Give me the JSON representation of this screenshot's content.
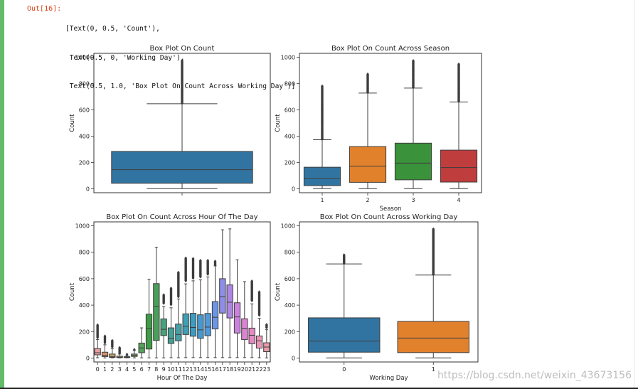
{
  "notebook": {
    "prompt": "Out[16]:",
    "output_lines": [
      "[Text(0, 0.5, 'Count'),",
      " Text(0.5, 0, 'Working Day'),",
      " Text(0.5, 1.0, 'Box Plot On Count Across Working Day')]"
    ],
    "watermark": "https://blog.csdn.net/weixin_43673156"
  },
  "chart_data": [
    {
      "type": "box",
      "title": "Box Plot On Count",
      "xlabel": "",
      "ylabel": "Count",
      "ylim": [
        -30,
        1030
      ],
      "yticks": [
        0,
        200,
        400,
        600,
        800,
        1000
      ],
      "categories": [
        ""
      ],
      "boxes": [
        {
          "min": 1,
          "q1": 42,
          "median": 145,
          "q3": 284,
          "max": 647,
          "outliers_from": 647,
          "outliers_to": 977,
          "color": "#3274a1"
        }
      ]
    },
    {
      "type": "box",
      "title": "Box Plot On Count Across Season",
      "xlabel": "Season",
      "ylabel": "Count",
      "ylim": [
        -30,
        1030
      ],
      "yticks": [
        0,
        200,
        400,
        600,
        800,
        1000
      ],
      "categories": [
        "1",
        "2",
        "3",
        "4"
      ],
      "boxes": [
        {
          "min": 1,
          "q1": 24,
          "median": 78,
          "q3": 164,
          "max": 373,
          "outliers_from": 373,
          "outliers_to": 781,
          "color": "#3274a1"
        },
        {
          "min": 1,
          "q1": 49,
          "median": 172,
          "q3": 321,
          "max": 728,
          "outliers_from": 728,
          "outliers_to": 873,
          "color": "#e1812c"
        },
        {
          "min": 1,
          "q1": 68,
          "median": 195,
          "q3": 347,
          "max": 766,
          "outliers_from": 766,
          "outliers_to": 977,
          "color": "#3a923a"
        },
        {
          "min": 1,
          "q1": 51,
          "median": 161,
          "q3": 294,
          "max": 660,
          "outliers_from": 660,
          "outliers_to": 948,
          "color": "#c03d3e"
        }
      ]
    },
    {
      "type": "box",
      "title": "Box Plot On Count Across Hour Of The Day",
      "xlabel": "Hour Of The Day",
      "ylabel": "Count",
      "ylim": [
        -30,
        1030
      ],
      "yticks": [
        0,
        200,
        400,
        600,
        800,
        1000
      ],
      "categories": [
        "0",
        "1",
        "2",
        "3",
        "4",
        "5",
        "6",
        "7",
        "8",
        "9",
        "10",
        "11",
        "12",
        "13",
        "14",
        "15",
        "16",
        "17",
        "18",
        "19",
        "20",
        "21",
        "22",
        "23"
      ],
      "boxes": [
        {
          "min": 2,
          "q1": 24,
          "median": 40,
          "q3": 72,
          "max": 140,
          "outliers_from": 150,
          "outliers_to": 253,
          "color": "#e8a0a0"
        },
        {
          "min": 1,
          "q1": 11,
          "median": 20,
          "q3": 44,
          "max": 100,
          "outliers_from": 110,
          "outliers_to": 168,
          "color": "#d8956a"
        },
        {
          "min": 1,
          "q1": 5,
          "median": 11,
          "q3": 30,
          "max": 70,
          "outliers_from": 80,
          "outliers_to": 132,
          "color": "#c8a060"
        },
        {
          "min": 1,
          "q1": 3,
          "median": 6,
          "q3": 14,
          "max": 30,
          "outliers_from": 34,
          "outliers_to": 78,
          "color": "#b6a26a"
        },
        {
          "min": 1,
          "q1": 3,
          "median": 6,
          "q3": 10,
          "max": 18,
          "outliers_from": 20,
          "outliers_to": 28,
          "color": "#a1a65a"
        },
        {
          "min": 1,
          "q1": 12,
          "median": 20,
          "q3": 30,
          "max": 57,
          "outliers_from": 60,
          "outliers_to": 65,
          "color": "#7fa45e"
        },
        {
          "min": 1,
          "q1": 40,
          "median": 76,
          "q3": 113,
          "max": 228,
          "outliers_from": 228,
          "outliers_to": 228,
          "color": "#53a35b"
        },
        {
          "min": 1,
          "q1": 68,
          "median": 223,
          "q3": 332,
          "max": 596,
          "outliers_from": 596,
          "outliers_to": 596,
          "color": "#3f9b45"
        },
        {
          "min": 1,
          "q1": 133,
          "median": 392,
          "q3": 563,
          "max": 839,
          "outliers_from": 839,
          "outliers_to": 839,
          "color": "#4aa05a"
        },
        {
          "min": 1,
          "q1": 170,
          "median": 217,
          "q3": 296,
          "max": 390,
          "outliers_from": 410,
          "outliers_to": 480,
          "color": "#48a27a"
        },
        {
          "min": 2,
          "q1": 110,
          "median": 149,
          "q3": 228,
          "max": 380,
          "outliers_from": 400,
          "outliers_to": 530,
          "color": "#47a095"
        },
        {
          "min": 2,
          "q1": 130,
          "median": 178,
          "q3": 257,
          "max": 447,
          "outliers_from": 460,
          "outliers_to": 650,
          "color": "#45a0a8"
        },
        {
          "min": 3,
          "q1": 178,
          "median": 240,
          "q3": 334,
          "max": 561,
          "outliers_from": 580,
          "outliers_to": 756,
          "color": "#3fa0b5"
        },
        {
          "min": 3,
          "q1": 165,
          "median": 231,
          "q3": 338,
          "max": 584,
          "outliers_from": 600,
          "outliers_to": 755,
          "color": "#3e9cbf"
        },
        {
          "min": 3,
          "q1": 149,
          "median": 213,
          "q3": 327,
          "max": 591,
          "outliers_from": 610,
          "outliers_to": 740,
          "color": "#449ad0"
        },
        {
          "min": 3,
          "q1": 169,
          "median": 234,
          "q3": 337,
          "max": 614,
          "outliers_from": 630,
          "outliers_to": 738,
          "color": "#4f98db"
        },
        {
          "min": 3,
          "q1": 220,
          "median": 308,
          "q3": 427,
          "max": 697,
          "outliers_from": 700,
          "outliers_to": 735,
          "color": "#6c96e5"
        },
        {
          "min": 3,
          "q1": 340,
          "median": 464,
          "q3": 600,
          "max": 970,
          "outliers_from": 970,
          "outliers_to": 970,
          "color": "#8e8ee8"
        },
        {
          "min": 3,
          "q1": 303,
          "median": 422,
          "q3": 553,
          "max": 977,
          "outliers_from": 977,
          "outliers_to": 977,
          "color": "#ae86e3"
        },
        {
          "min": 3,
          "q1": 189,
          "median": 311,
          "q3": 418,
          "max": 743,
          "outliers_from": 743,
          "outliers_to": 743,
          "color": "#c983dd"
        },
        {
          "min": 3,
          "q1": 139,
          "median": 225,
          "q3": 297,
          "max": 578,
          "outliers_from": 578,
          "outliers_to": 578,
          "color": "#dc84d3"
        },
        {
          "min": 3,
          "q1": 108,
          "median": 172,
          "q3": 226,
          "max": 410,
          "outliers_from": 430,
          "outliers_to": 584,
          "color": "#e58ac3"
        },
        {
          "min": 2,
          "q1": 75,
          "median": 130,
          "q3": 167,
          "max": 300,
          "outliers_from": 320,
          "outliers_to": 502,
          "color": "#e995b5"
        },
        {
          "min": 1,
          "q1": 48,
          "median": 83,
          "q3": 115,
          "max": 214,
          "outliers_from": 225,
          "outliers_to": 256,
          "color": "#eb9cab"
        }
      ]
    },
    {
      "type": "box",
      "title": "Box Plot On Count Across Working Day",
      "xlabel": "Working Day",
      "ylabel": "Count",
      "ylim": [
        -30,
        1030
      ],
      "yticks": [
        0,
        200,
        400,
        600,
        800,
        1000
      ],
      "categories": [
        "0",
        "1"
      ],
      "boxes": [
        {
          "min": 1,
          "q1": 44,
          "median": 128,
          "q3": 304,
          "max": 712,
          "outliers_from": 712,
          "outliers_to": 783,
          "color": "#3274a1"
        },
        {
          "min": 1,
          "q1": 41,
          "median": 151,
          "q3": 277,
          "max": 628,
          "outliers_from": 628,
          "outliers_to": 977,
          "color": "#e1812c"
        }
      ]
    }
  ]
}
